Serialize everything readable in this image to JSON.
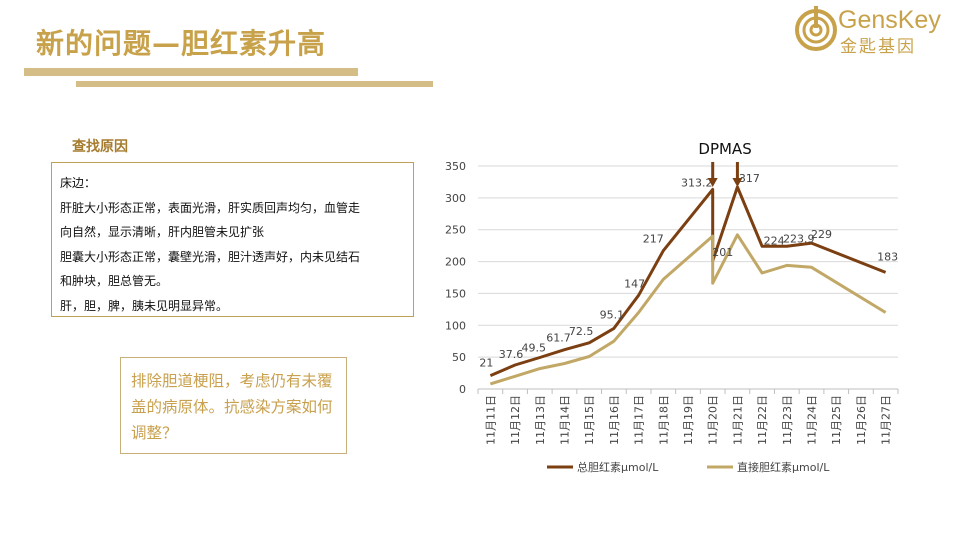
{
  "header": {
    "title": "新的问题—胆红素升高"
  },
  "logo": {
    "text": "GensKey",
    "sub": "金匙基因"
  },
  "section": {
    "label": "查找原因"
  },
  "findings": {
    "lines": [
      "床边：",
      "肝脏大小形态正常，表面光滑，肝实质回声均匀，血管走",
      "向自然，显示清晰，肝内胆管未见扩张",
      "胆囊大小形态正常，囊壁光滑，胆汁透声好，内未见结石",
      "和肿块，胆总管无。",
      "肝，胆，脾，胰未见明显异常。"
    ]
  },
  "conclusion": {
    "text": "排除胆道梗阻，考虑仍有未覆盖的病原体。抗感染方案如何调整？"
  },
  "chart_data": {
    "type": "line",
    "categories": [
      "11月11日",
      "11月12日",
      "11月13日",
      "11月14日",
      "11月15日",
      "11月16日",
      "11月17日",
      "11月18日",
      "11月19日",
      "11月20日",
      "11月21日",
      "11月22日",
      "11月23日",
      "11月24日",
      "11月25日",
      "11月26日",
      "11月27日"
    ],
    "ylim": [
      0,
      350
    ],
    "yticks": [
      0,
      50,
      100,
      150,
      200,
      250,
      300,
      350
    ],
    "series": [
      {
        "name": "总胆红素μmol/L",
        "color": "#7b3f12",
        "points": [
          {
            "x": 0,
            "y": 21,
            "label": "21"
          },
          {
            "x": 1,
            "y": 37.6,
            "label": "37.6"
          },
          {
            "x": 2,
            "y": 49.5,
            "label": "49.5"
          },
          {
            "x": 3,
            "y": 61.7,
            "label": "61.7"
          },
          {
            "x": 4,
            "y": 72.5,
            "label": "72.5"
          },
          {
            "x": 5,
            "y": 95.1,
            "label": "95.1"
          },
          {
            "x": 6,
            "y": 147,
            "label": "147"
          },
          {
            "x": 7,
            "y": 217,
            "label": "217"
          },
          {
            "x": 9,
            "y": 313.2,
            "label": "313.2"
          },
          {
            "x": 9,
            "y": 201,
            "label": "201"
          },
          {
            "x": 10,
            "y": 317,
            "label": "317"
          },
          {
            "x": 11,
            "y": 224,
            "label": "224"
          },
          {
            "x": 12,
            "y": 223.9,
            "label": "223.9"
          },
          {
            "x": 13,
            "y": 229,
            "label": "229"
          },
          {
            "x": 16,
            "y": 183,
            "label": "183"
          }
        ]
      },
      {
        "name": "直接胆红素μmol/L",
        "color": "#c2a866",
        "points": [
          {
            "x": 0,
            "y": 8
          },
          {
            "x": 1,
            "y": 20
          },
          {
            "x": 2,
            "y": 32
          },
          {
            "x": 3,
            "y": 40
          },
          {
            "x": 4,
            "y": 51
          },
          {
            "x": 5,
            "y": 75
          },
          {
            "x": 6,
            "y": 120
          },
          {
            "x": 7,
            "y": 172
          },
          {
            "x": 9,
            "y": 240
          },
          {
            "x": 9,
            "y": 166
          },
          {
            "x": 10,
            "y": 242
          },
          {
            "x": 11,
            "y": 182
          },
          {
            "x": 12,
            "y": 194
          },
          {
            "x": 13,
            "y": 191
          },
          {
            "x": 16,
            "y": 120
          }
        ]
      }
    ],
    "annotation": {
      "text": "DPMAS",
      "arrows_at": [
        9,
        10
      ]
    },
    "legend": "bottom"
  }
}
